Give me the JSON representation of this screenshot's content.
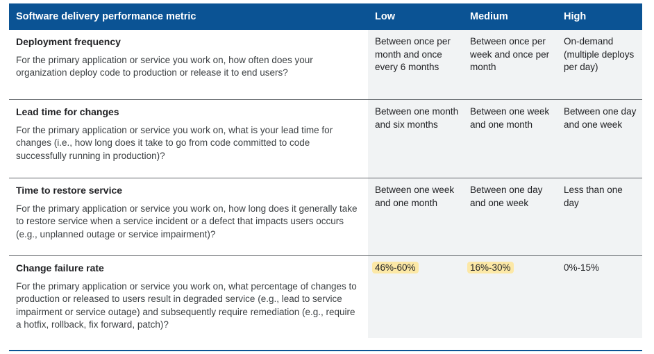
{
  "header": {
    "metric": "Software delivery performance metric",
    "low": "Low",
    "medium": "Medium",
    "high": "High"
  },
  "rows": [
    {
      "title": "Deployment frequency",
      "description": "For the primary application or service you work on, how often does your organization deploy code to production or release it to end users?",
      "low": "Between once per month and once every 6 months",
      "medium": "Between once per week and once per month",
      "high": "On-demand (multiple deploys per day)"
    },
    {
      "title": "Lead time for changes",
      "description": "For the primary application or service you work on, what is your lead time for changes (i.e., how long does it take to go from code committed to code successfully running in production)?",
      "low": "Between one month and six months",
      "medium": "Between one week and one month",
      "high": "Between one day and one week"
    },
    {
      "title": "Time to restore service",
      "description": "For the primary application or service you work on, how long does it generally take to restore service when a service incident or a defect that impacts users occurs (e.g., unplanned outage or service impairment)?",
      "low": "Between one week and one month",
      "medium": "Between one day and one week",
      "high": "Less than one day"
    },
    {
      "title": "Change failure rate",
      "description": "For the primary application or service you work on, what percentage of changes to production or released to users result in degraded service (e.g., lead to service impairment or service outage) and subsequently require remediation (e.g., require a hotfix, rollback, fix forward, patch)?",
      "low": "46%-60%",
      "medium": "16%-30%",
      "high": "0%-15%"
    }
  ],
  "colors": {
    "header_bg": "#0b5394",
    "value_bg": "#f1f3f4",
    "highlight": "#fce8a6"
  }
}
